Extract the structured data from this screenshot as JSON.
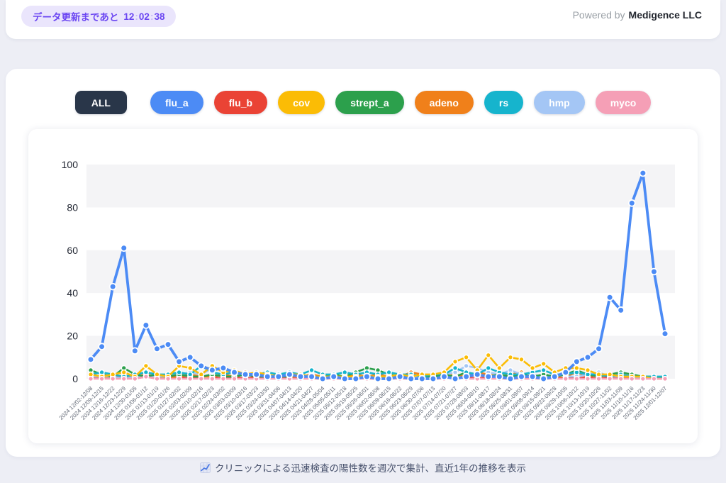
{
  "header": {
    "badge": {
      "label": "データ更新まであと",
      "hours": "12",
      "minutes": "02",
      "seconds": "38"
    },
    "powered_by": {
      "prefix": "Powered by",
      "company": "Medigence LLC"
    }
  },
  "filters": [
    {
      "id": "all",
      "label": "ALL",
      "color": "#293649",
      "active": true
    },
    {
      "id": "flu_a",
      "label": "flu_a",
      "color": "#4c8bf5"
    },
    {
      "id": "flu_b",
      "label": "flu_b",
      "color": "#ea4335"
    },
    {
      "id": "cov",
      "label": "cov",
      "color": "#fbbc05"
    },
    {
      "id": "strept_a",
      "label": "strept_a",
      "color": "#2ca04c"
    },
    {
      "id": "adeno",
      "label": "adeno",
      "color": "#f0801a"
    },
    {
      "id": "rs",
      "label": "rs",
      "color": "#16b4cd"
    },
    {
      "id": "hmp",
      "label": "hmp",
      "color": "#a4c6f5"
    },
    {
      "id": "myco",
      "label": "myco",
      "color": "#f59fb6"
    }
  ],
  "caption": {
    "icon": "chart-increasing",
    "text": "クリニックによる迅速検査の陽性数を週次で集計、直近1年の推移を表示"
  },
  "chart_data": {
    "type": "line",
    "title": "",
    "xlabel": "",
    "ylabel": "",
    "ylim": [
      0,
      100
    ],
    "yticks": [
      0,
      20,
      40,
      60,
      80,
      100
    ],
    "grid": "striped-horizontal-bands",
    "band_color": "#f4f4f6",
    "legend": "filter-chips-above-chart",
    "emphasis": "flu_a",
    "draw_order": [
      "flu_b",
      "adeno",
      "hmp",
      "strept_a",
      "rs",
      "cov",
      "myco",
      "flu_a"
    ],
    "categories": [
      "2024 12/02-12/08",
      "2024 12/09-12/15",
      "2024 12/16-12/22",
      "2024 12/23-12/29",
      "2024 12/30-01/05",
      "2025 01/06-01/12",
      "2025 01/13-01/19",
      "2025 01/20-01/26",
      "2025 01/27-02/02",
      "2025 02/03-02/09",
      "2025 02/10-02/16",
      "2025 02/17-02/23",
      "2025 02/24-03/02",
      "2025 03/03-03/09",
      "2025 03/10-03/16",
      "2025 03/17-03/23",
      "2025 03/24-03/30",
      "2025 03/31-04/06",
      "2025 04/07-04/13",
      "2025 04/14-04/20",
      "2025 04/21-04/27",
      "2025 04/28-05/04",
      "2025 05/05-05/11",
      "2025 05/12-05/18",
      "2025 05/19-05/25",
      "2025 05/26-06/01",
      "2025 06/02-06/08",
      "2025 06/09-06/15",
      "2025 06/16-06/22",
      "2025 06/23-06/29",
      "2025 06/30-07/06",
      "2025 07/07-07/13",
      "2025 07/14-07/20",
      "2025 07/21-07/27",
      "2025 07/28-08/03",
      "2025 08/04-08/10",
      "2025 08/11-08/17",
      "2025 08/18-08/24",
      "2025 08/25-08/31",
      "2025 09/01-09/07",
      "2025 09/08-09/14",
      "2025 09/15-09/21",
      "2025 09/22-09/28",
      "2025 09/29-10/05",
      "2025 10/06-10/12",
      "2025 10/13-10/19",
      "2025 10/20-10/26",
      "2025 10/27-11/02",
      "2025 11/03-11/09",
      "2025 11/10-11/16",
      "2025 11/17-11/23",
      "2025 11/24-11/30",
      "2025 12/01-12/07"
    ],
    "series": [
      {
        "name": "flu_a",
        "color": "#4c8bf5",
        "values": [
          9,
          15,
          43,
          61,
          13,
          25,
          14,
          16,
          8,
          10,
          6,
          4,
          5,
          3,
          2,
          2,
          1,
          1,
          2,
          1,
          1,
          0,
          1,
          0,
          0,
          1,
          0,
          0,
          1,
          0,
          0,
          0,
          1,
          0,
          1,
          2,
          1,
          1,
          0,
          1,
          1,
          0,
          1,
          3,
          8,
          10,
          14,
          38,
          32,
          82,
          96,
          50,
          21
        ]
      },
      {
        "name": "flu_b",
        "color": "#ea4335",
        "values": [
          1,
          0,
          1,
          1,
          0,
          1,
          0,
          1,
          1,
          0,
          1,
          1,
          0,
          1,
          0,
          1,
          0,
          1,
          0,
          1,
          2,
          0,
          1,
          0,
          1,
          0,
          0,
          1,
          0,
          1,
          0,
          0,
          1,
          0,
          1,
          0,
          1,
          2,
          0,
          1,
          0,
          1,
          0,
          1,
          0,
          1,
          0,
          1,
          0,
          1,
          0,
          1,
          0
        ]
      },
      {
        "name": "cov",
        "color": "#fbbc05",
        "values": [
          2,
          1,
          2,
          3,
          1,
          6,
          2,
          1,
          6,
          5,
          2,
          6,
          3,
          4,
          2,
          3,
          2,
          1,
          2,
          2,
          1,
          1,
          1,
          1,
          1,
          1,
          1,
          1,
          2,
          1,
          2,
          2,
          3,
          8,
          10,
          4,
          11,
          5,
          10,
          9,
          5,
          7,
          3,
          5,
          5,
          4,
          2,
          2,
          1,
          1,
          1,
          0,
          0
        ]
      },
      {
        "name": "strept_a",
        "color": "#2ca04c",
        "values": [
          4,
          2,
          1,
          5,
          2,
          1,
          2,
          1,
          2,
          1,
          1,
          2,
          1,
          1,
          2,
          1,
          1,
          1,
          1,
          2,
          1,
          1,
          2,
          1,
          3,
          5,
          4,
          2,
          1,
          2,
          1,
          1,
          2,
          1,
          3,
          2,
          1,
          2,
          1,
          2,
          1,
          2,
          1,
          2,
          4,
          2,
          1,
          2,
          3,
          2,
          1,
          1,
          0
        ]
      },
      {
        "name": "adeno",
        "color": "#f0801a",
        "values": [
          1,
          1,
          0,
          1,
          1,
          2,
          1,
          0,
          1,
          2,
          1,
          1,
          2,
          1,
          3,
          1,
          1,
          2,
          1,
          1,
          2,
          1,
          1,
          1,
          2,
          1,
          2,
          1,
          1,
          3,
          2,
          1,
          1,
          2,
          1,
          3,
          2,
          1,
          2,
          3,
          1,
          2,
          1,
          1,
          3,
          1,
          2,
          1,
          2,
          1,
          1,
          0,
          1
        ]
      },
      {
        "name": "rs",
        "color": "#16b4cd",
        "values": [
          2,
          3,
          2,
          1,
          2,
          3,
          2,
          2,
          3,
          2,
          6,
          3,
          2,
          3,
          2,
          2,
          3,
          2,
          3,
          2,
          4,
          2,
          2,
          3,
          2,
          3,
          2,
          3,
          2,
          2,
          1,
          2,
          2,
          5,
          3,
          2,
          5,
          3,
          2,
          2,
          3,
          4,
          2,
          2,
          3,
          2,
          2,
          1,
          2,
          1,
          1,
          1,
          1
        ]
      },
      {
        "name": "hmp",
        "color": "#a4c6f5",
        "values": [
          1,
          1,
          1,
          0,
          1,
          1,
          1,
          1,
          2,
          3,
          2,
          5,
          4,
          2,
          1,
          2,
          1,
          1,
          2,
          1,
          1,
          1,
          1,
          0,
          1,
          1,
          1,
          1,
          1,
          1,
          1,
          1,
          2,
          3,
          6,
          5,
          3,
          2,
          4,
          2,
          2,
          1,
          2,
          1,
          1,
          2,
          3,
          1,
          1,
          1,
          0,
          1,
          0
        ]
      },
      {
        "name": "myco",
        "color": "#f59fb6",
        "values": [
          0,
          0,
          0,
          0,
          0,
          1,
          0,
          0,
          0,
          0,
          0,
          0,
          0,
          0,
          0,
          0,
          0,
          0,
          0,
          0,
          0,
          0,
          0,
          0,
          0,
          0,
          0,
          0,
          0,
          0,
          0,
          0,
          0,
          1,
          0,
          0,
          0,
          0,
          0,
          0,
          0,
          0,
          0,
          0,
          0,
          0,
          0,
          0,
          0,
          0,
          0,
          0,
          0
        ]
      }
    ]
  }
}
